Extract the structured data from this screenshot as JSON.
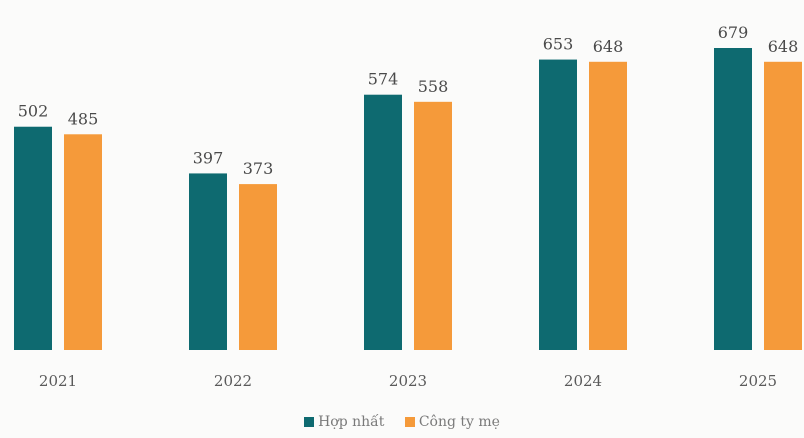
{
  "chart_data": {
    "type": "bar",
    "categories": [
      "2021",
      "2022",
      "2023",
      "2024",
      "2025"
    ],
    "series": [
      {
        "name": "Hợp nhất",
        "values": [
          502,
          397,
          574,
          653,
          679
        ],
        "color": "#0e6a70"
      },
      {
        "name": "Công ty mẹ",
        "values": [
          485,
          373,
          558,
          648,
          648
        ],
        "color": "#f59a3a"
      }
    ],
    "title": "",
    "xlabel": "",
    "ylabel": "",
    "ylim": [
      0,
      679
    ],
    "grid": false,
    "legend_position": "bottom-center"
  }
}
